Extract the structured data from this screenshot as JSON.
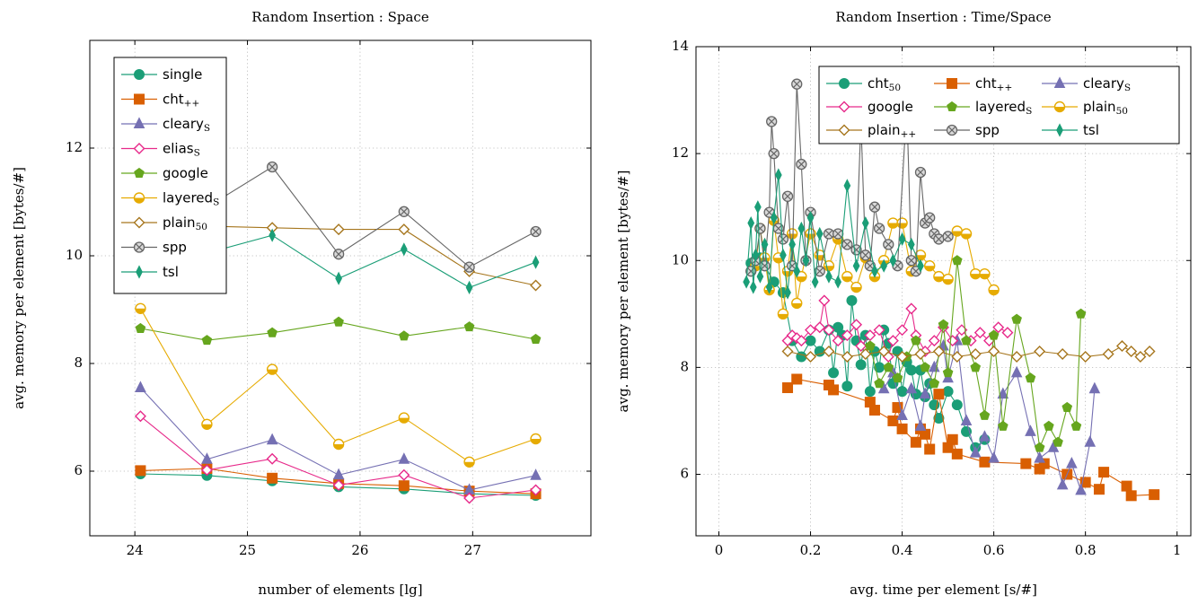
{
  "chart_data": [
    {
      "type": "line",
      "title": "Random Insertion : Space",
      "xlabel": "number of elements [lg]",
      "ylabel": "avg. memory per element [bytes/#]",
      "xlim": [
        23.6,
        28.05
      ],
      "ylim": [
        4.8,
        14.0
      ],
      "xticks": [
        24,
        25,
        26,
        27
      ],
      "yticks": [
        6,
        8,
        10,
        12
      ],
      "grid": true,
      "legend": "top-left",
      "series": [
        {
          "name": "single",
          "sub": "",
          "color": "#1b9e77",
          "marker": "circle",
          "x": [
            24.05,
            24.64,
            25.22,
            25.81,
            26.39,
            26.97,
            27.56
          ],
          "y": [
            5.95,
            5.92,
            5.82,
            5.71,
            5.67,
            5.58,
            5.55
          ]
        },
        {
          "name": "cht",
          "sub": "++",
          "color": "#d95f02",
          "marker": "square",
          "x": [
            24.05,
            24.64,
            25.22,
            25.81,
            26.39,
            26.97,
            27.56
          ],
          "y": [
            6.01,
            6.05,
            5.87,
            5.77,
            5.73,
            5.63,
            5.58
          ]
        },
        {
          "name": "cleary",
          "sub": "S",
          "color": "#7570b3",
          "marker": "triangle",
          "x": [
            24.05,
            24.64,
            25.22,
            25.81,
            26.39,
            26.97,
            27.56
          ],
          "y": [
            7.55,
            6.22,
            6.58,
            5.93,
            6.22,
            5.65,
            5.92
          ]
        },
        {
          "name": "elias",
          "sub": "S",
          "color": "#e7298a",
          "marker": "diamond",
          "x": [
            24.05,
            24.64,
            25.22,
            25.81,
            26.39,
            26.97,
            27.56
          ],
          "y": [
            7.02,
            6.02,
            6.23,
            5.74,
            5.93,
            5.5,
            5.65
          ]
        },
        {
          "name": "google",
          "sub": "",
          "color": "#66a61e",
          "marker": "pentagon",
          "x": [
            24.05,
            24.64,
            25.22,
            25.81,
            26.39,
            26.97,
            27.56
          ],
          "y": [
            8.65,
            8.43,
            8.57,
            8.77,
            8.51,
            8.68,
            8.45
          ]
        },
        {
          "name": "layered",
          "sub": "S",
          "color": "#e6ab02",
          "marker": "halfcircle",
          "x": [
            24.05,
            24.64,
            25.22,
            25.81,
            26.39,
            26.97,
            27.56
          ],
          "y": [
            9.02,
            6.87,
            7.89,
            6.5,
            6.99,
            6.17,
            6.6
          ]
        },
        {
          "name": "plain",
          "sub": "50",
          "color": "#a6761d",
          "marker": "diamond",
          "x": [
            24.05,
            24.64,
            25.22,
            25.81,
            26.39,
            26.97,
            27.56
          ],
          "y": [
            10.5,
            10.55,
            10.52,
            10.49,
            10.49,
            9.71,
            9.45
          ]
        },
        {
          "name": "spp",
          "sub": "",
          "color": "#666666",
          "marker": "otimes",
          "x": [
            24.05,
            24.64,
            25.22,
            25.81,
            26.39,
            26.97,
            27.56
          ],
          "y": [
            10.65,
            10.9,
            11.65,
            10.03,
            10.82,
            9.79,
            10.45
          ]
        },
        {
          "name": "tsl",
          "sub": "",
          "color": "#1b9e77",
          "marker": "thindiamond",
          "x": [
            24.05,
            24.64,
            25.22,
            25.81,
            26.39,
            26.97,
            27.56
          ],
          "y": [
            10.05,
            10.05,
            10.38,
            9.58,
            10.12,
            9.41,
            9.88
          ]
        }
      ]
    },
    {
      "type": "line",
      "title": "Random Insertion : Time/Space",
      "xlabel": "avg. time per element [s/#]",
      "ylabel": "avg. memory per element [bytes/#]",
      "xlim": [
        -0.05,
        1.03
      ],
      "ylim": [
        4.85,
        14.0
      ],
      "xticks": [
        0,
        0.2,
        0.4,
        0.6,
        0.8,
        1
      ],
      "yticks": [
        6,
        8,
        10,
        12,
        14
      ],
      "grid": true,
      "legend": "top-right",
      "series": [
        {
          "name": "cht",
          "sub": "50",
          "color": "#1b9e77",
          "marker": "circle",
          "x": [
            0.07,
            0.09,
            0.1,
            0.12,
            0.14,
            0.16,
            0.18,
            0.2,
            0.22,
            0.24,
            0.25,
            0.26,
            0.27,
            0.28,
            0.29,
            0.3,
            0.31,
            0.32,
            0.33,
            0.34,
            0.35,
            0.36,
            0.37,
            0.38,
            0.39,
            0.4,
            0.41,
            0.42,
            0.43,
            0.44,
            0.45,
            0.46,
            0.47,
            0.48,
            0.5,
            0.52,
            0.54,
            0.56,
            0.58
          ],
          "y": [
            9.95,
            10.05,
            9.9,
            9.6,
            9.4,
            8.5,
            8.2,
            8.5,
            8.3,
            8.7,
            7.9,
            8.75,
            8.6,
            7.65,
            9.25,
            8.5,
            8.05,
            8.6,
            7.55,
            8.3,
            8.0,
            8.7,
            8.45,
            7.7,
            8.3,
            7.55,
            8.1,
            7.95,
            7.5,
            7.95,
            7.45,
            7.7,
            7.3,
            7.05,
            7.55,
            7.3,
            6.8,
            6.5,
            6.65
          ]
        },
        {
          "name": "cht",
          "sub": "++",
          "color": "#d95f02",
          "marker": "square",
          "x": [
            0.15,
            0.17,
            0.24,
            0.25,
            0.33,
            0.34,
            0.38,
            0.39,
            0.4,
            0.43,
            0.44,
            0.45,
            0.46,
            0.48,
            0.5,
            0.51,
            0.52,
            0.58,
            0.67,
            0.7,
            0.71,
            0.76,
            0.8,
            0.83,
            0.84,
            0.89,
            0.9,
            0.95
          ],
          "y": [
            7.62,
            7.78,
            7.67,
            7.58,
            7.35,
            7.2,
            7.0,
            7.25,
            6.85,
            6.6,
            6.85,
            6.75,
            6.47,
            7.5,
            6.5,
            6.65,
            6.38,
            6.23,
            6.2,
            6.1,
            6.2,
            6.0,
            5.85,
            5.72,
            6.04,
            5.78,
            5.6,
            5.62
          ]
        },
        {
          "name": "cleary",
          "sub": "S",
          "color": "#7570b3",
          "marker": "triangle",
          "x": [
            0.36,
            0.38,
            0.4,
            0.42,
            0.44,
            0.45,
            0.47,
            0.49,
            0.5,
            0.52,
            0.54,
            0.56,
            0.58,
            0.6,
            0.62,
            0.65,
            0.68,
            0.7,
            0.73,
            0.75,
            0.77,
            0.79,
            0.81,
            0.82
          ],
          "y": [
            7.6,
            7.9,
            7.1,
            7.6,
            6.9,
            7.5,
            8.0,
            8.4,
            7.8,
            8.5,
            7.0,
            6.4,
            6.7,
            6.3,
            7.5,
            7.9,
            6.8,
            6.3,
            6.5,
            5.8,
            6.2,
            5.7,
            6.6,
            7.6
          ]
        },
        {
          "name": "google",
          "sub": "",
          "color": "#e7298a",
          "marker": "diamond",
          "x": [
            0.15,
            0.16,
            0.17,
            0.18,
            0.2,
            0.22,
            0.23,
            0.24,
            0.26,
            0.28,
            0.3,
            0.31,
            0.33,
            0.35,
            0.37,
            0.38,
            0.4,
            0.42,
            0.43,
            0.45,
            0.47,
            0.49,
            0.51,
            0.53,
            0.55,
            0.57,
            0.59,
            0.61,
            0.63
          ],
          "y": [
            8.5,
            8.6,
            8.55,
            8.5,
            8.7,
            8.75,
            9.25,
            8.7,
            8.5,
            8.6,
            8.8,
            8.4,
            8.6,
            8.7,
            8.2,
            8.5,
            8.7,
            9.1,
            8.6,
            8.3,
            8.5,
            8.75,
            8.5,
            8.7,
            8.5,
            8.65,
            8.5,
            8.75,
            8.65
          ]
        },
        {
          "name": "layered",
          "sub": "S",
          "color": "#66a61e",
          "marker": "pentagon",
          "x": [
            0.33,
            0.35,
            0.37,
            0.39,
            0.41,
            0.43,
            0.45,
            0.47,
            0.49,
            0.5,
            0.52,
            0.54,
            0.56,
            0.58,
            0.6,
            0.62,
            0.65,
            0.68,
            0.7,
            0.72,
            0.74,
            0.76,
            0.78,
            0.79
          ],
          "y": [
            8.4,
            7.7,
            8.0,
            7.8,
            8.2,
            8.5,
            8.0,
            7.7,
            8.8,
            7.9,
            10.0,
            8.5,
            8.0,
            7.1,
            8.6,
            6.9,
            8.9,
            7.8,
            6.5,
            6.9,
            6.6,
            7.25,
            6.9,
            9.0
          ]
        },
        {
          "name": "plain",
          "sub": "50",
          "color": "#e6ab02",
          "marker": "halfcircle",
          "x": [
            0.08,
            0.09,
            0.1,
            0.11,
            0.12,
            0.13,
            0.14,
            0.15,
            0.16,
            0.17,
            0.18,
            0.2,
            0.22,
            0.24,
            0.26,
            0.28,
            0.3,
            0.32,
            0.34,
            0.36,
            0.38,
            0.4,
            0.42,
            0.44,
            0.46,
            0.48,
            0.5,
            0.52,
            0.54,
            0.56,
            0.58,
            0.6
          ],
          "y": [
            9.9,
            10.6,
            10.05,
            9.45,
            10.75,
            10.05,
            9.0,
            9.8,
            10.5,
            9.2,
            9.7,
            10.5,
            10.1,
            9.9,
            10.4,
            9.7,
            9.5,
            10.05,
            9.7,
            10.0,
            10.7,
            10.7,
            9.8,
            10.1,
            9.9,
            9.7,
            9.65,
            10.55,
            10.5,
            9.75,
            9.75,
            9.45
          ]
        },
        {
          "name": "plain",
          "sub": "++",
          "color": "#a6761d",
          "marker": "diamond",
          "x": [
            0.15,
            0.2,
            0.24,
            0.28,
            0.32,
            0.36,
            0.4,
            0.44,
            0.48,
            0.52,
            0.56,
            0.6,
            0.65,
            0.7,
            0.75,
            0.8,
            0.85,
            0.88,
            0.9,
            0.92,
            0.94
          ],
          "y": [
            8.3,
            8.2,
            8.3,
            8.2,
            8.25,
            8.3,
            8.2,
            8.25,
            8.3,
            8.2,
            8.25,
            8.3,
            8.2,
            8.3,
            8.25,
            8.2,
            8.25,
            8.4,
            8.3,
            8.2,
            8.3
          ]
        },
        {
          "name": "spp",
          "sub": "",
          "color": "#666666",
          "marker": "otimes",
          "x": [
            0.07,
            0.08,
            0.09,
            0.1,
            0.11,
            0.115,
            0.12,
            0.13,
            0.14,
            0.15,
            0.16,
            0.17,
            0.18,
            0.19,
            0.2,
            0.22,
            0.24,
            0.26,
            0.28,
            0.3,
            0.31,
            0.32,
            0.33,
            0.34,
            0.35,
            0.37,
            0.39,
            0.41,
            0.42,
            0.43,
            0.44,
            0.45,
            0.46,
            0.47,
            0.48,
            0.5
          ],
          "y": [
            9.8,
            10.0,
            10.6,
            9.9,
            10.9,
            12.6,
            12.0,
            10.6,
            10.4,
            11.2,
            9.9,
            13.3,
            11.8,
            10.0,
            10.9,
            9.8,
            10.5,
            10.5,
            10.3,
            10.2,
            12.6,
            10.1,
            9.9,
            11.0,
            10.6,
            10.3,
            9.9,
            12.9,
            10.0,
            9.8,
            11.65,
            10.7,
            10.8,
            10.5,
            10.4,
            10.45
          ]
        },
        {
          "name": "tsl",
          "sub": "",
          "color": "#1b9e77",
          "marker": "thindiamond",
          "x": [
            0.06,
            0.07,
            0.075,
            0.08,
            0.085,
            0.09,
            0.1,
            0.11,
            0.12,
            0.13,
            0.14,
            0.15,
            0.16,
            0.17,
            0.18,
            0.19,
            0.2,
            0.21,
            0.22,
            0.24,
            0.26,
            0.28,
            0.3,
            0.32,
            0.34,
            0.36,
            0.38,
            0.4,
            0.42,
            0.44
          ],
          "y": [
            9.6,
            10.7,
            9.5,
            10.1,
            11.0,
            9.7,
            10.3,
            9.5,
            10.8,
            11.6,
            10.1,
            9.4,
            10.3,
            9.8,
            10.6,
            10.0,
            10.8,
            9.6,
            10.5,
            9.7,
            9.6,
            11.4,
            9.9,
            10.7,
            9.8,
            9.9,
            10.0,
            10.4,
            10.3,
            9.9
          ]
        }
      ]
    }
  ]
}
